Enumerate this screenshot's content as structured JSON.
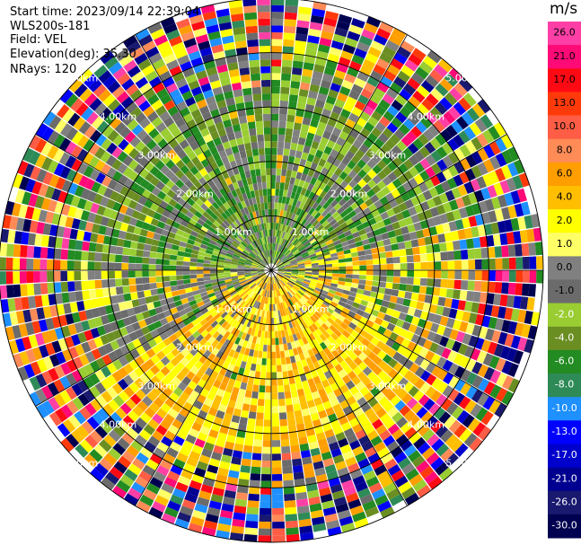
{
  "header": {
    "start_time": "Start time: 2023/09/14 22:39:04",
    "instrument": "WLS200s-181",
    "field": "Field: VEL",
    "elevation": "Elevation(deg): 35.30",
    "nrays": "NRays: 120"
  },
  "colorbar": {
    "title": "m/s",
    "labels": [
      "26.0",
      "21.0",
      "17.0",
      "13.0",
      "10.0",
      "8.0",
      "6.0",
      "4.0",
      "2.0",
      "1.0",
      "0.0",
      "-1.0",
      "-2.0",
      "-4.0",
      "-6.0",
      "-8.0",
      "-10.0",
      "-13.0",
      "-17.0",
      "-21.0",
      "-26.0",
      "-30.0"
    ],
    "colors": [
      "#ff3fa6",
      "#ff0a76",
      "#ff0a14",
      "#ff3a0a",
      "#ff5d45",
      "#ff8b57",
      "#ff9e00",
      "#ffbe00",
      "#ffff00",
      "#ffff66",
      "#808080",
      "#6b6b6b",
      "#9acd32",
      "#6b8e23",
      "#228b22",
      "#2e8b57",
      "#1e90ff",
      "#0000ff",
      "#0000cd",
      "#000090",
      "#191970",
      "#000050"
    ]
  },
  "chart_data": {
    "type": "ppi",
    "field": "VEL",
    "units": "m/s",
    "nrays": 120,
    "range_rings_km": [
      1,
      2,
      3,
      4,
      5
    ],
    "ring_labels": [
      "1.00km",
      "2.00km",
      "3.00km",
      "4.00km",
      "5.00km"
    ],
    "max_range_km": 5.0,
    "vmin": -30.0,
    "vmax": 26.0
  }
}
